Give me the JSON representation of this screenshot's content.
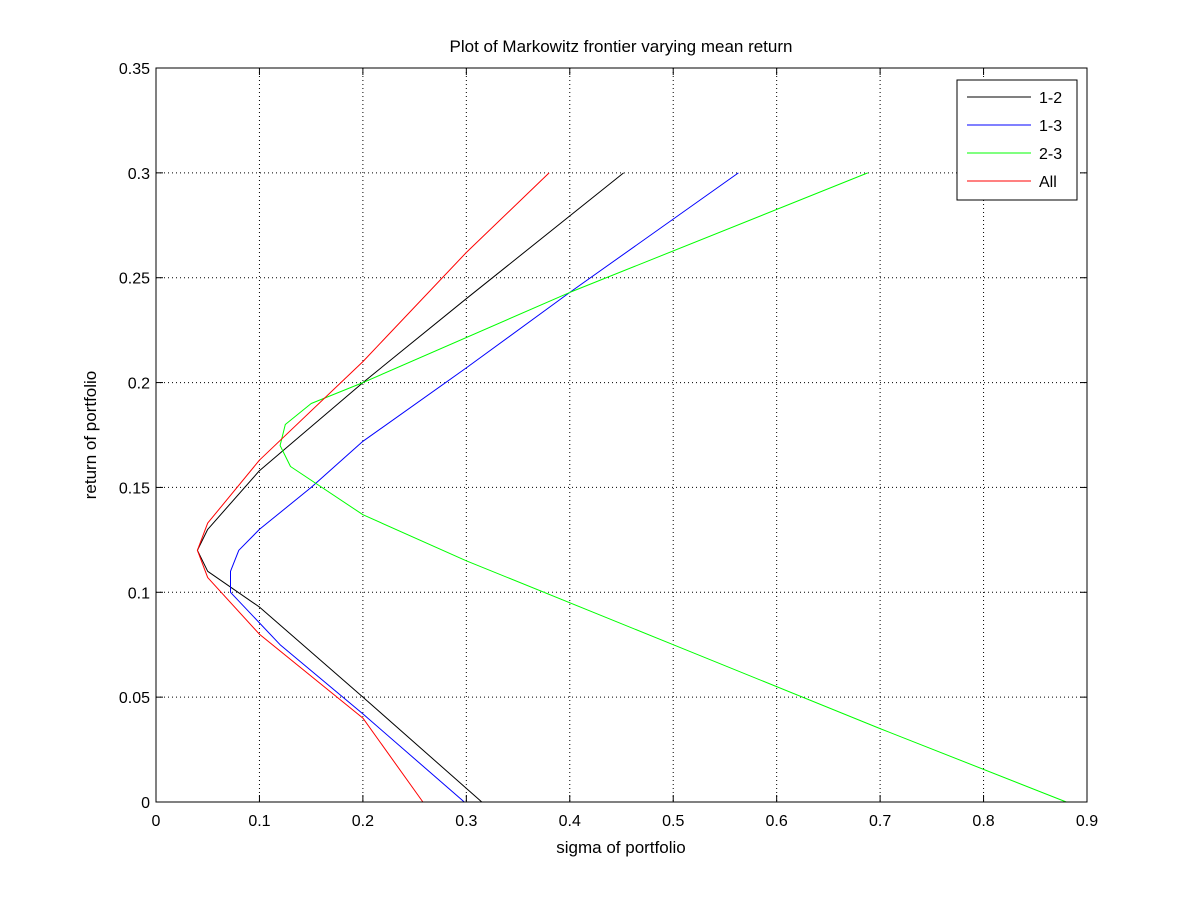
{
  "chart_data": {
    "type": "line",
    "title": "Plot of Markowitz frontier varying mean return",
    "xlabel": "sigma of portfolio",
    "ylabel": "return of portfolio",
    "xlim": [
      0,
      0.9
    ],
    "ylim": [
      0,
      0.35
    ],
    "xticks": [
      0,
      0.1,
      0.2,
      0.3,
      0.4,
      0.5,
      0.6,
      0.7,
      0.8,
      0.9
    ],
    "yticks": [
      0,
      0.05,
      0.1,
      0.15,
      0.2,
      0.25,
      0.3,
      0.35
    ],
    "xtick_labels": [
      "0",
      "0.1",
      "0.2",
      "0.3",
      "0.4",
      "0.5",
      "0.6",
      "0.7",
      "0.8",
      "0.9"
    ],
    "ytick_labels": [
      "0",
      "0.05",
      "0.1",
      "0.15",
      "0.2",
      "0.25",
      "0.3",
      "0.35"
    ],
    "grid": true,
    "legend_position": "top-right",
    "series": [
      {
        "name": "1-2",
        "color": "#000000",
        "x": [
          0.315,
          0.2,
          0.1,
          0.05,
          0.04,
          0.05,
          0.1,
          0.2,
          0.3,
          0.452
        ],
        "y": [
          0,
          0.05,
          0.093,
          0.11,
          0.12,
          0.13,
          0.158,
          0.2,
          0.24,
          0.3
        ]
      },
      {
        "name": "1-3",
        "color": "#0000ff",
        "x": [
          0.298,
          0.2,
          0.12,
          0.072,
          0.072,
          0.08,
          0.1,
          0.15,
          0.2,
          0.3,
          0.4,
          0.563
        ],
        "y": [
          0,
          0.042,
          0.075,
          0.1,
          0.11,
          0.12,
          0.13,
          0.15,
          0.172,
          0.207,
          0.243,
          0.3
        ]
      },
      {
        "name": "2-3",
        "color": "#00ff00",
        "x": [
          0.88,
          0.7,
          0.5,
          0.3,
          0.2,
          0.13,
          0.12,
          0.125,
          0.15,
          0.2,
          0.4,
          0.688
        ],
        "y": [
          0,
          0.035,
          0.075,
          0.115,
          0.137,
          0.16,
          0.17,
          0.18,
          0.19,
          0.2,
          0.243,
          0.3
        ]
      },
      {
        "name": "All",
        "color": "#ff0000",
        "x": [
          0.258,
          0.2,
          0.1,
          0.05,
          0.04,
          0.05,
          0.1,
          0.2,
          0.3,
          0.38
        ],
        "y": [
          0,
          0.04,
          0.08,
          0.107,
          0.12,
          0.133,
          0.163,
          0.21,
          0.262,
          0.3
        ]
      }
    ]
  }
}
